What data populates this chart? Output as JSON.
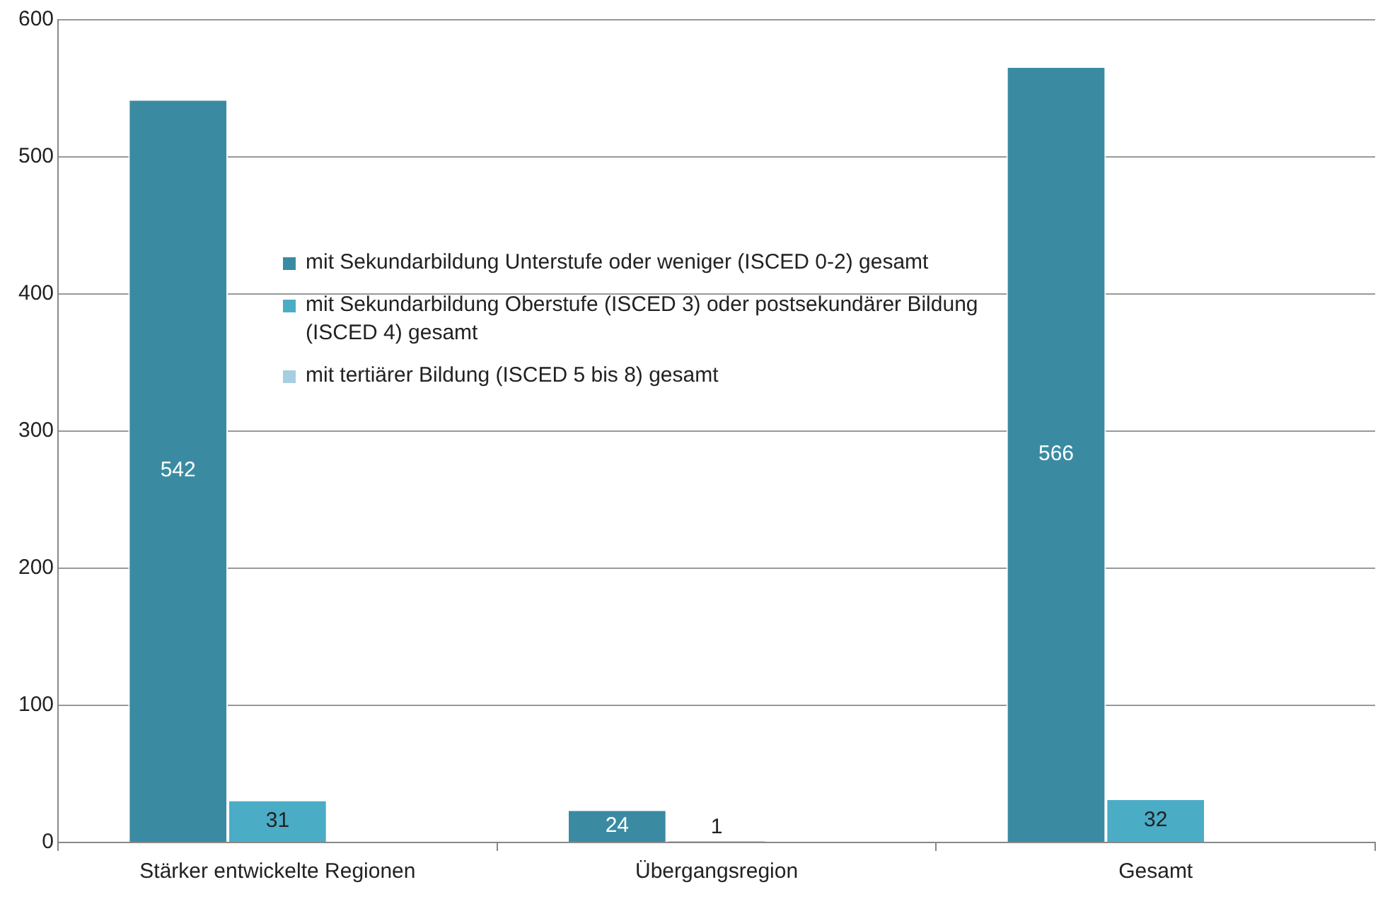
{
  "chart_data": {
    "type": "bar",
    "categories": [
      "Stärker entwickelte Regionen",
      "Übergangsregion",
      "Gesamt"
    ],
    "series": [
      {
        "name": "mit Sekundarbildung Unterstufe oder weniger (ISCED 0-2) gesamt",
        "color": "#3a8ba2",
        "values": [
          542,
          24,
          566
        ]
      },
      {
        "name": "mit Sekundarbildung Oberstufe (ISCED 3) oder postsekundärer Bildung (ISCED 4) gesamt",
        "color": "#4bacc6",
        "values": [
          31,
          1,
          32
        ]
      },
      {
        "name": "mit tertiärer Bildung (ISCED 5 bis 8) gesamt",
        "color": "#a5cfe0",
        "values": [
          null,
          null,
          null
        ]
      }
    ],
    "ylim": [
      0,
      600
    ],
    "yticks": [
      0,
      100,
      200,
      300,
      400,
      500,
      600
    ],
    "grid": "y",
    "legend": "top",
    "data_labels": true
  }
}
